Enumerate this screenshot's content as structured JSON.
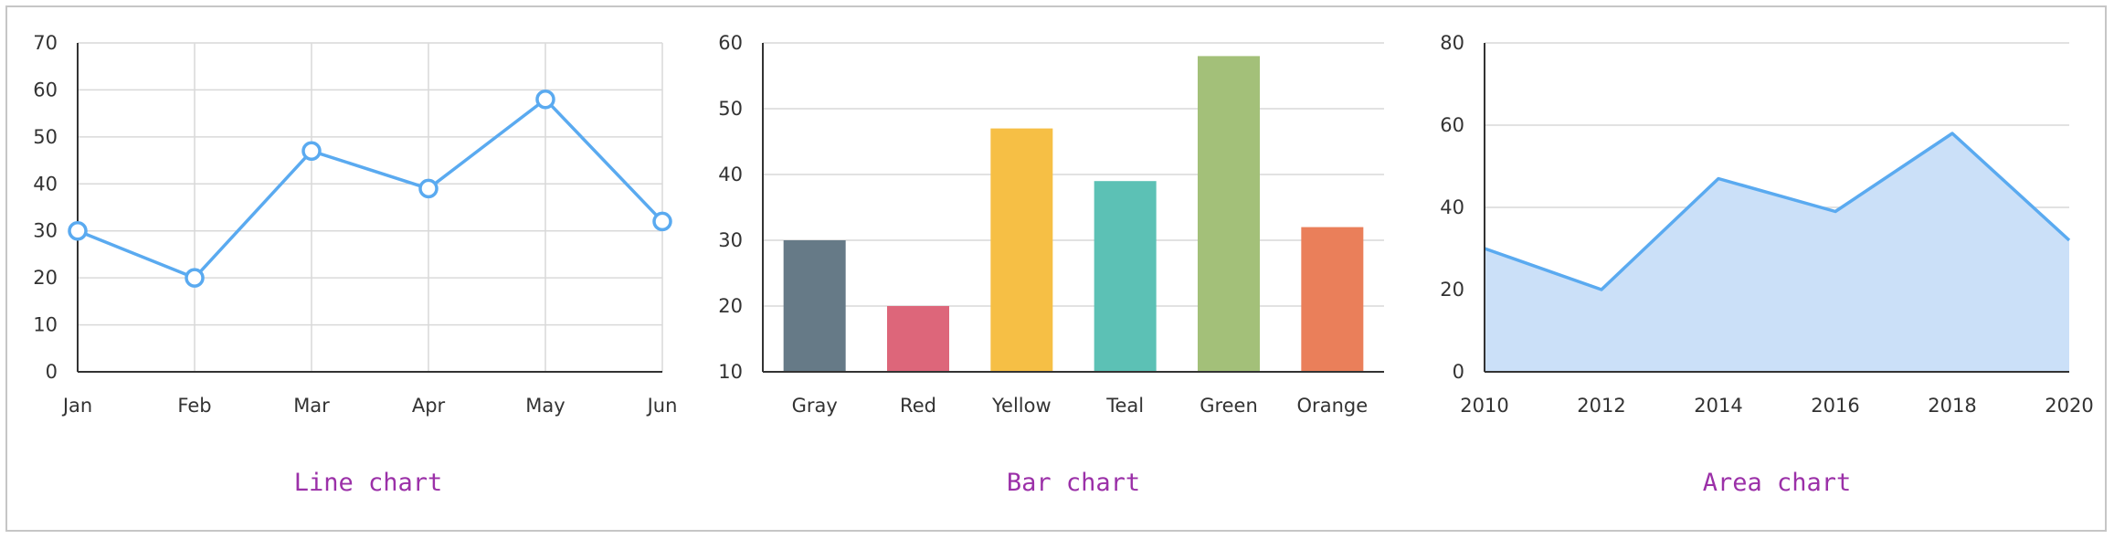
{
  "colors": {
    "line": "#5aaaf0",
    "area_fill": "#cbe0f8",
    "grid": "#d9d9d9",
    "axis": "#333333",
    "caption": "#9b30a8"
  },
  "captions": {
    "line": "Line chart",
    "bar": "Bar chart",
    "area": "Area chart"
  },
  "chart_data": [
    {
      "type": "line",
      "title": "Line chart",
      "categories": [
        "Jan",
        "Feb",
        "Mar",
        "Apr",
        "May",
        "Jun"
      ],
      "values": [
        30,
        20,
        47,
        39,
        58,
        32
      ],
      "ylim": [
        0,
        70
      ],
      "yticks": [
        0,
        10,
        20,
        30,
        40,
        50,
        60,
        70
      ],
      "grid": "both",
      "markers": "hollow-circle"
    },
    {
      "type": "bar",
      "title": "Bar chart",
      "categories": [
        "Gray",
        "Red",
        "Yellow",
        "Teal",
        "Green",
        "Orange"
      ],
      "values": [
        30,
        20,
        47,
        39,
        58,
        32
      ],
      "bar_colors": [
        "#667a87",
        "#dd667a",
        "#f6bf45",
        "#5cc1b5",
        "#a3c079",
        "#ea7f5a"
      ],
      "ylim": [
        10,
        60
      ],
      "yticks": [
        10,
        20,
        30,
        40,
        50,
        60
      ],
      "grid": "horizontal"
    },
    {
      "type": "area",
      "title": "Area chart",
      "x": [
        2010,
        2012,
        2014,
        2016,
        2018,
        2020
      ],
      "values": [
        30,
        20,
        47,
        39,
        58,
        32
      ],
      "ylim": [
        0,
        80
      ],
      "yticks": [
        0,
        20,
        40,
        60,
        80
      ],
      "grid": "horizontal"
    }
  ]
}
